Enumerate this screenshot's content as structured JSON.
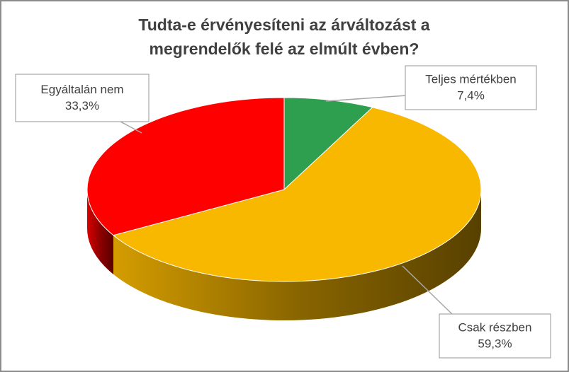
{
  "chart_data": {
    "type": "pie",
    "title": "Tudta-e érvényesíteni az árváltozást a megrendelők felé az elmúlt évben?",
    "categories": [
      "Teljes mértékben",
      "Csak részben",
      "Egyáltalán nem"
    ],
    "values": [
      7.4,
      59.3,
      33.3
    ],
    "value_labels": [
      "7,4%",
      "59,3%",
      "33,3%"
    ],
    "colors": [
      "#2e9e4f",
      "#f9b800",
      "#ff0000"
    ]
  }
}
